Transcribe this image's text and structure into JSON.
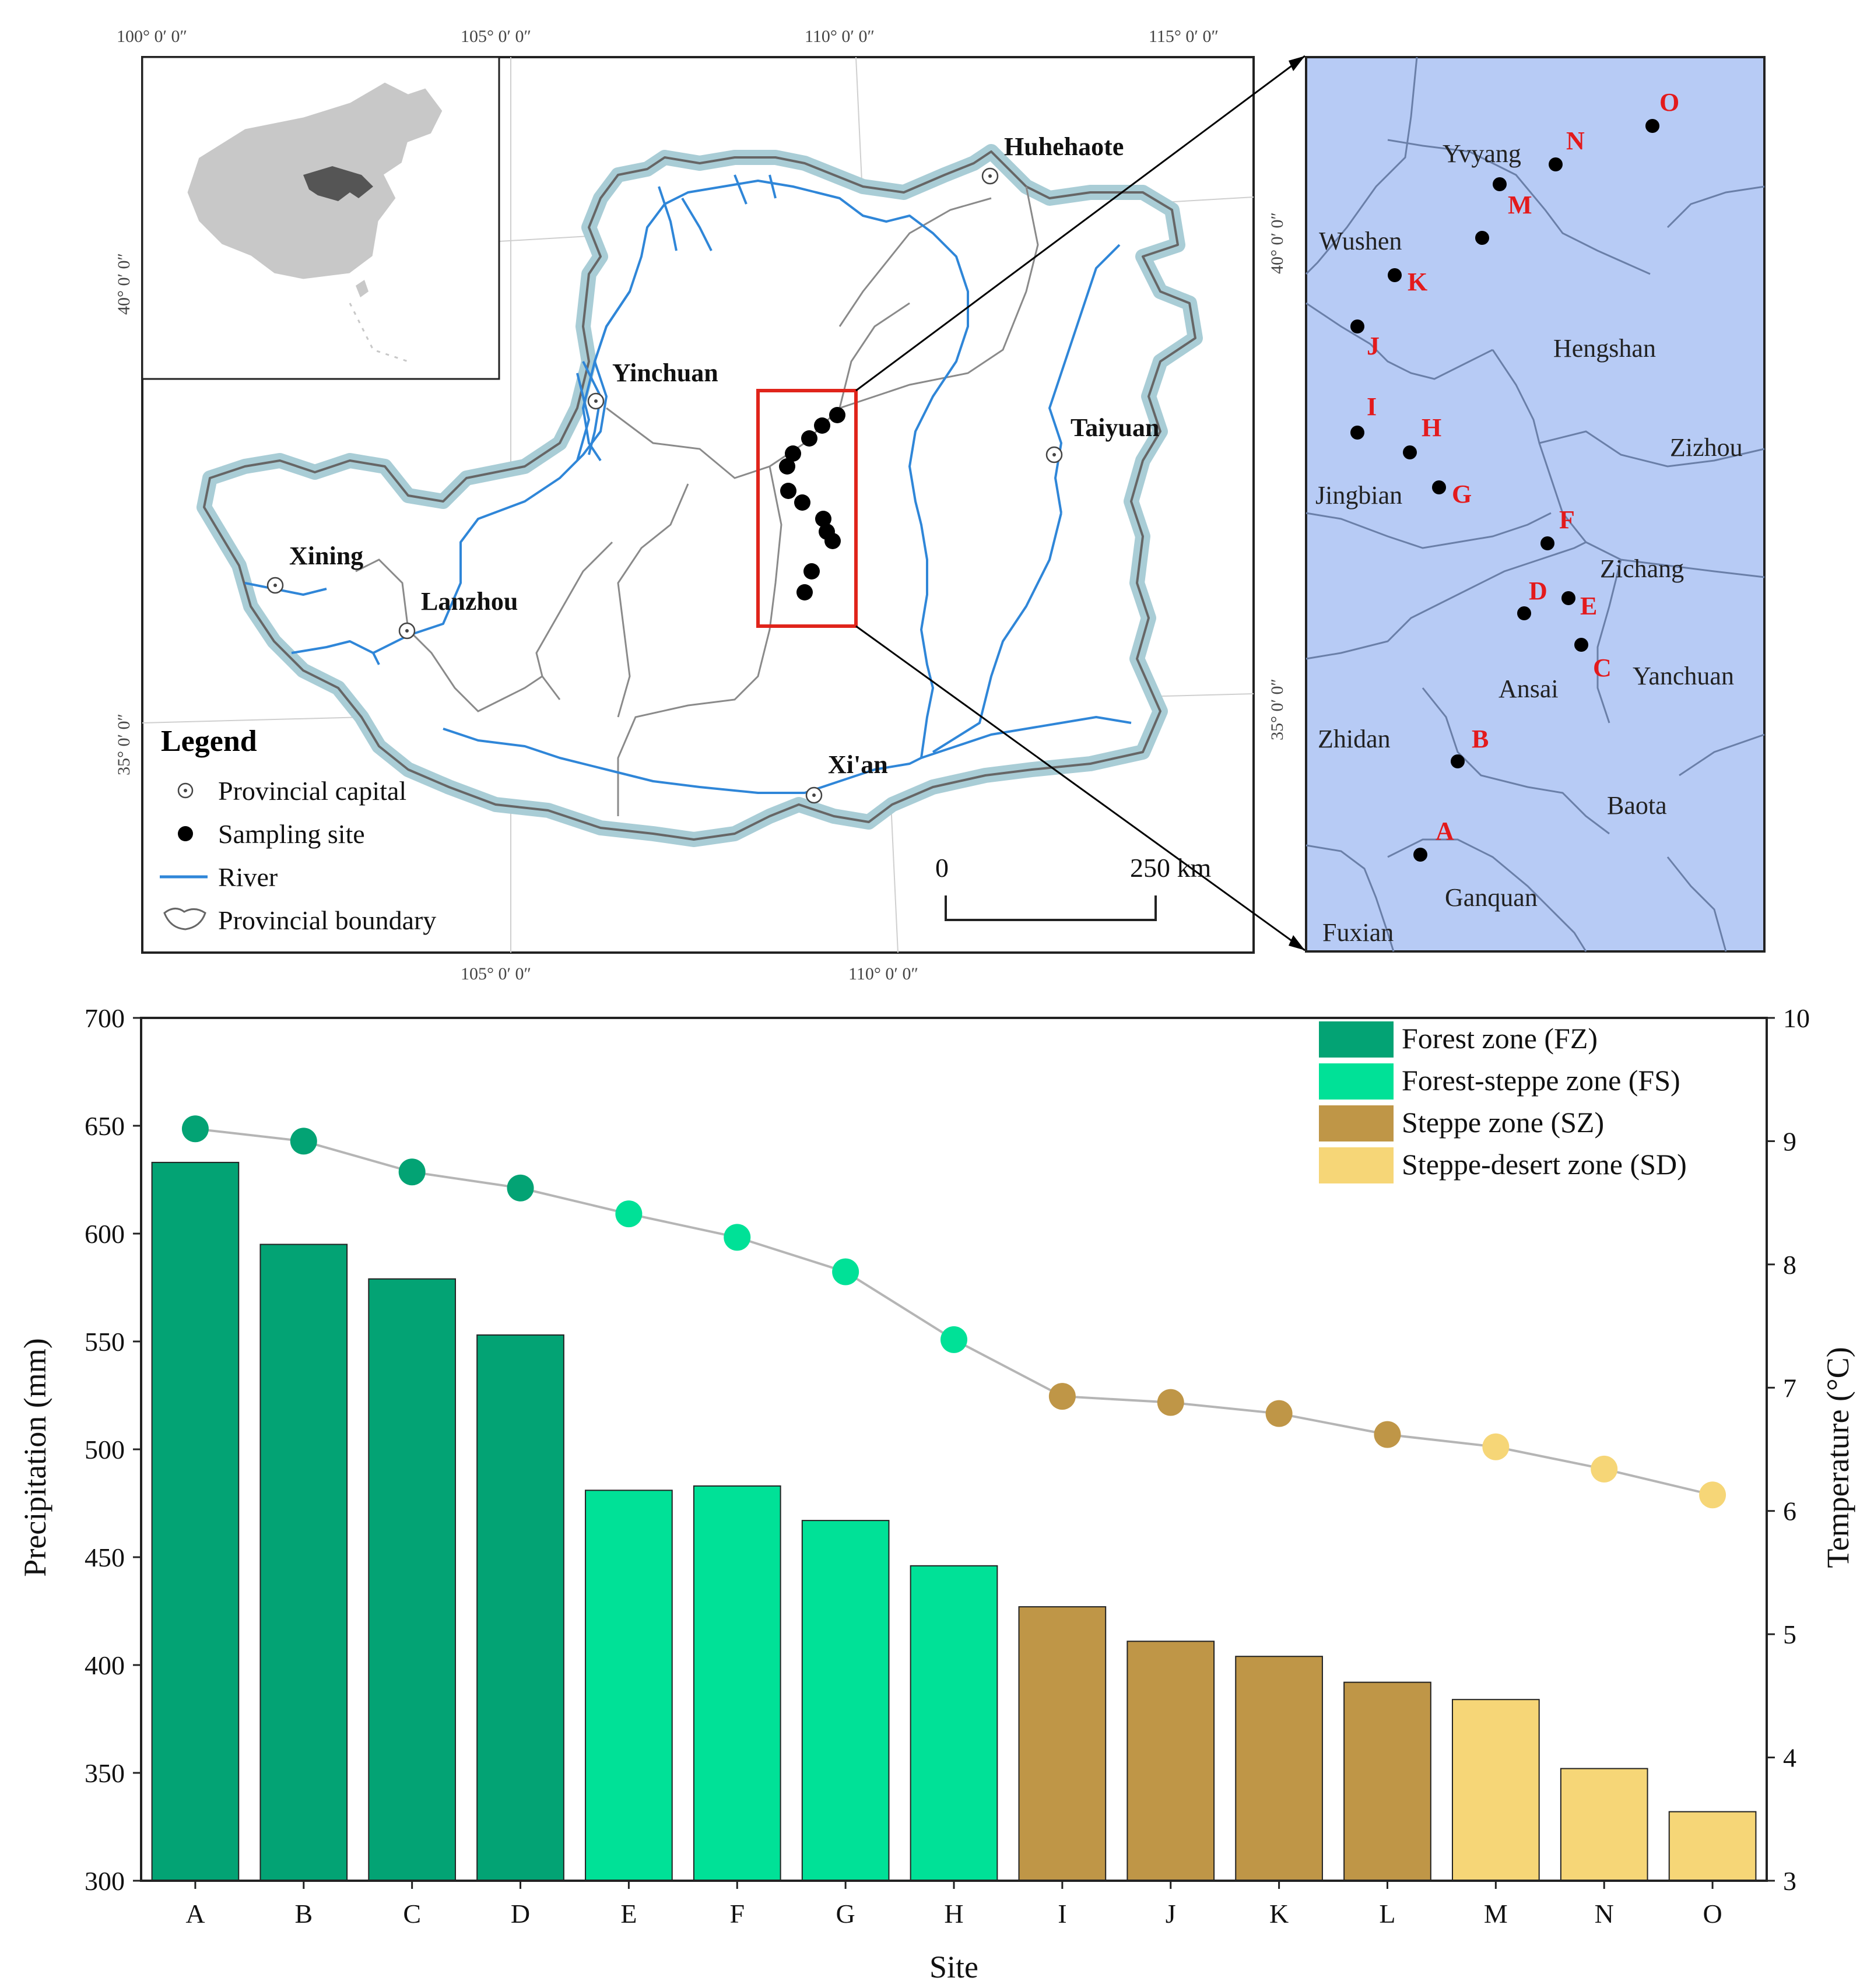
{
  "map": {
    "longitudes_top": [
      "100° 0′ 0″",
      "105° 0′ 0″",
      "110° 0′ 0″",
      "115° 0′ 0″"
    ],
    "longitudes_bottom": [
      "105° 0′ 0″",
      "110° 0′ 0″"
    ],
    "latitudes_left": [
      "40° 0′ 0″",
      "35° 0′ 0″"
    ],
    "latitudes_right": [
      "40° 0′ 0″",
      "35° 0′ 0″"
    ],
    "cities": [
      "Huhehaote",
      "Yinchuan",
      "Taiyuan",
      "Xining",
      "Lanzhou",
      "Xi'an"
    ],
    "legend": {
      "title": "Legend",
      "items": [
        "Provincial capital",
        "Sampling site",
        "River",
        "Provincial boundary"
      ]
    },
    "scale": {
      "start": "0",
      "end": "250 km"
    },
    "colors": {
      "plateau": "#ffffff",
      "glow": "#a9cdd6",
      "river": "#2f86d8",
      "frame": "#e0241b",
      "china": "#c8c8c8",
      "loess": "#555555"
    }
  },
  "inset": {
    "counties": [
      "Yvyang",
      "Wushen",
      "Hengshan",
      "Zizhou",
      "Jingbian",
      "Zichang",
      "Ansai",
      "Yanchuan",
      "Zhidan",
      "Baota",
      "Ganquan",
      "Fuxian"
    ],
    "sites": [
      "A",
      "B",
      "C",
      "D",
      "E",
      "F",
      "G",
      "H",
      "I",
      "J",
      "K",
      "M",
      "N",
      "O"
    ],
    "colors": {
      "background": "#b7cbf5",
      "lines": "#6a7fa8"
    }
  },
  "chart_data": {
    "type": "bar",
    "categories": [
      "A",
      "B",
      "C",
      "D",
      "E",
      "F",
      "G",
      "H",
      "I",
      "J",
      "K",
      "L",
      "M",
      "N",
      "O"
    ],
    "xlabel": "Site",
    "ylabel": "Precipitation (mm)",
    "y2label": "Temperature (°C)",
    "ylim": [
      300,
      700
    ],
    "y2lim": [
      3,
      10
    ],
    "yticks": [
      "300",
      "350",
      "400",
      "450",
      "500",
      "550",
      "600",
      "650",
      "700"
    ],
    "y2ticks": [
      "3",
      "4",
      "5",
      "6",
      "7",
      "8",
      "9",
      "10"
    ],
    "series": [
      {
        "name": "Precipitation",
        "kind": "bar",
        "axis": "left",
        "values": [
          633,
          595,
          579,
          553,
          481,
          483,
          467,
          446,
          427,
          411,
          404,
          392,
          384,
          352,
          332
        ]
      },
      {
        "name": "Temperature",
        "kind": "line+scatter",
        "axis": "right",
        "values": [
          9.1,
          9.0,
          8.75,
          8.62,
          8.41,
          8.22,
          7.94,
          7.39,
          6.93,
          6.88,
          6.79,
          6.62,
          6.52,
          6.34,
          6.13
        ]
      }
    ],
    "zones": [
      "FZ",
      "FZ",
      "FZ",
      "FZ",
      "FS",
      "FS",
      "FS",
      "FS",
      "SZ",
      "SZ",
      "SZ",
      "SZ",
      "SD",
      "SD",
      "SD"
    ],
    "legend": [
      {
        "label": "Forest zone (FZ)",
        "color": "#03a374"
      },
      {
        "label": "Forest-steppe zone (FS)",
        "color": "#00e197"
      },
      {
        "label": "Steppe zone (SZ)",
        "color": "#bf9647"
      },
      {
        "label": "Steppe-desert zone (SD)",
        "color": "#f6d677"
      }
    ],
    "zone_colors": {
      "FZ": "#03a374",
      "FS": "#00e197",
      "SZ": "#bf9647",
      "SD": "#f6d677"
    },
    "line_color": "#b5b5b5"
  }
}
